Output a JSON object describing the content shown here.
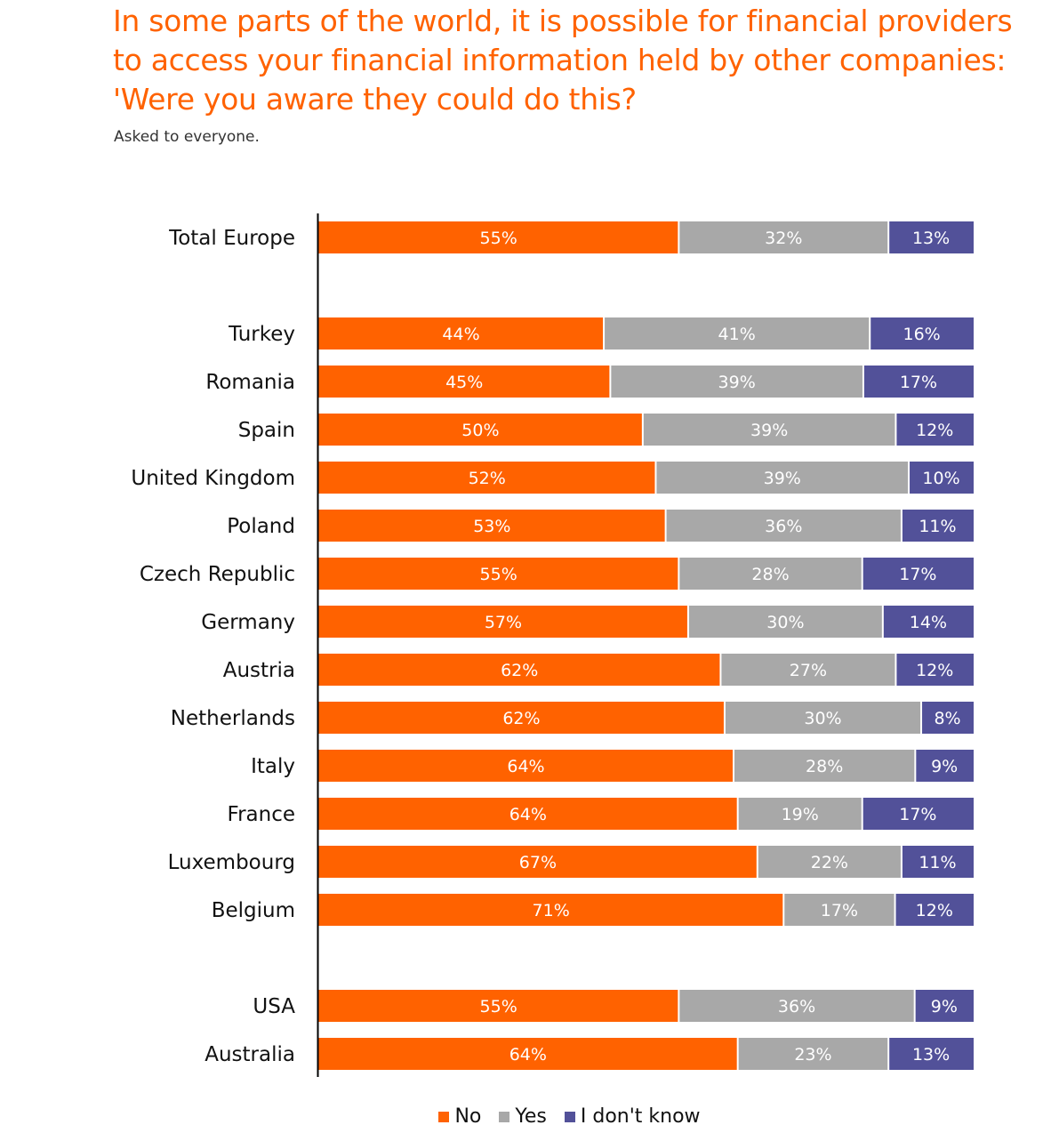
{
  "chart_data": {
    "type": "bar",
    "orientation": "horizontal",
    "stacked": true,
    "title": "In some parts of the world, it is possible for financial providers to access your financial information held by other companies: 'Were you aware they could do this?",
    "title_lines": [
      "In some parts of the world, it is possible for financial providers",
      "to access your financial information held by other companies:",
      "'Were you aware they could do this?"
    ],
    "subtitle": "Asked to everyone.",
    "xlabel": "",
    "ylabel": "",
    "xlim": [
      0,
      100
    ],
    "unit": "%",
    "grid": false,
    "legend_position": "bottom",
    "categories": [
      "Total Europe",
      "Turkey",
      "Romania",
      "Spain",
      "United Kingdom",
      "Poland",
      "Czech Republic",
      "Germany",
      "Austria",
      "Netherlands",
      "Italy",
      "France",
      "Luxembourg",
      "Belgium",
      "USA",
      "Australia"
    ],
    "groups": [
      [
        "Total Europe"
      ],
      [
        "Turkey",
        "Romania",
        "Spain",
        "United Kingdom",
        "Poland",
        "Czech Republic",
        "Germany",
        "Austria",
        "Netherlands",
        "Italy",
        "France",
        "Luxembourg",
        "Belgium"
      ],
      [
        "USA",
        "Australia"
      ]
    ],
    "series": [
      {
        "name": "No",
        "color": "#ff6200",
        "values": [
          55,
          44,
          45,
          50,
          52,
          53,
          55,
          57,
          62,
          62,
          64,
          64,
          67,
          71,
          55,
          64
        ]
      },
      {
        "name": "Yes",
        "color": "#a8a8a8",
        "values": [
          32,
          41,
          39,
          39,
          39,
          36,
          28,
          30,
          27,
          30,
          28,
          19,
          22,
          17,
          36,
          23
        ]
      },
      {
        "name": "I don't know",
        "color": "#525199",
        "values": [
          13,
          16,
          17,
          12,
          10,
          11,
          17,
          14,
          12,
          8,
          9,
          17,
          11,
          12,
          9,
          13
        ]
      }
    ]
  }
}
